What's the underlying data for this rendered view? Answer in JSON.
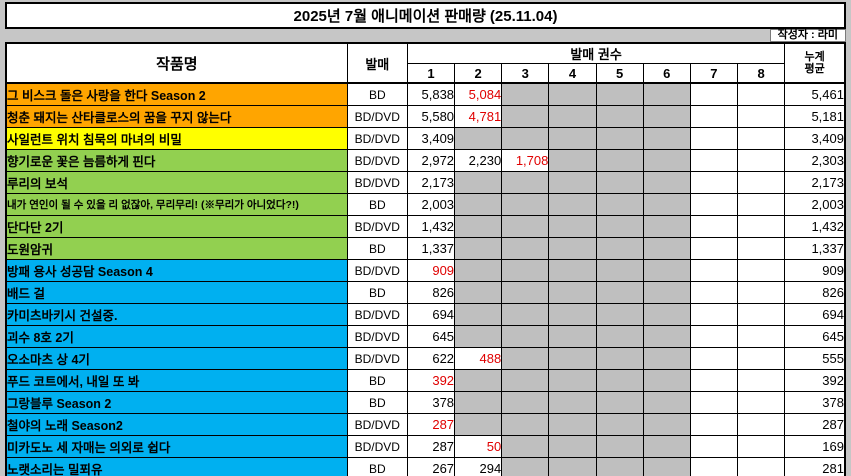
{
  "chart_data": {
    "type": "table",
    "title": "2025년 7월 애니메이션 판매량 (25.11.04)",
    "byline": "작성자 : 라미",
    "headers": {
      "series": "작품명",
      "format": "발매",
      "volume_group": "발매 권수",
      "volume_numbers": [
        "1",
        "2",
        "3",
        "4",
        "5",
        "6",
        "7",
        "8"
      ],
      "cumulative_line1": "누계",
      "cumulative_line2": "평균"
    },
    "colors": {
      "orange": "#FFA500",
      "yellow": "#FFFF00",
      "green": "#92D050",
      "blue": "#00B0F0",
      "no_data_gray": "#BFBFBF",
      "decline_red": "#E00000"
    },
    "rows": [
      {
        "title": "그 비스크 돌은 사랑을 한다 Season 2",
        "color": "orange",
        "format": "BD",
        "values": [
          {
            "v": "5,838"
          },
          {
            "v": "5,084",
            "red": true
          }
        ],
        "gray_to": 6,
        "cum": "5,461"
      },
      {
        "title": "청춘 돼지는 산타클로스의 꿈을 꾸지 않는다",
        "color": "orange",
        "format": "BD/DVD",
        "values": [
          {
            "v": "5,580"
          },
          {
            "v": "4,781",
            "red": true
          }
        ],
        "gray_to": 6,
        "cum": "5,181"
      },
      {
        "title": "사일런트 위치 침묵의 마녀의 비밀",
        "color": "yellow",
        "format": "BD/DVD",
        "values": [
          {
            "v": "3,409"
          }
        ],
        "gray_to": 6,
        "cum": "3,409"
      },
      {
        "title": "향기로운 꽃은 늠름하게 핀다",
        "color": "green",
        "format": "BD/DVD",
        "values": [
          {
            "v": "2,972"
          },
          {
            "v": "2,230"
          },
          {
            "v": "1,708",
            "red": true
          }
        ],
        "gray_to": 6,
        "cum": "2,303"
      },
      {
        "title": "루리의 보석",
        "color": "green",
        "format": "BD/DVD",
        "values": [
          {
            "v": "2,173"
          }
        ],
        "gray_to": 6,
        "cum": "2,173"
      },
      {
        "title": "내가 연인이 될 수 있을 리 없잖아, 무리무리! (※무리가 아니었다?!)",
        "color": "green",
        "format": "BD",
        "values": [
          {
            "v": "2,003"
          }
        ],
        "gray_to": 6,
        "cum": "2,003"
      },
      {
        "title": "단다단 2기",
        "color": "green",
        "format": "BD/DVD",
        "values": [
          {
            "v": "1,432"
          }
        ],
        "gray_to": 6,
        "cum": "1,432"
      },
      {
        "title": "도원암귀",
        "color": "green",
        "format": "BD",
        "values": [
          {
            "v": "1,337"
          }
        ],
        "gray_to": 6,
        "cum": "1,337"
      },
      {
        "title": "방패 용사 성공담 Season 4",
        "color": "blue",
        "format": "BD/DVD",
        "values": [
          {
            "v": "909",
            "red": true
          }
        ],
        "gray_to": 6,
        "cum": "909"
      },
      {
        "title": "배드 걸",
        "color": "blue",
        "format": "BD",
        "values": [
          {
            "v": "826"
          }
        ],
        "gray_to": 6,
        "cum": "826"
      },
      {
        "title": "카미츠바키시 건설중.",
        "color": "blue",
        "format": "BD/DVD",
        "values": [
          {
            "v": "694"
          }
        ],
        "gray_to": 6,
        "cum": "694"
      },
      {
        "title": "괴수 8호 2기",
        "color": "blue",
        "format": "BD/DVD",
        "values": [
          {
            "v": "645"
          }
        ],
        "gray_to": 6,
        "cum": "645"
      },
      {
        "title": "오소마츠 상 4기",
        "color": "blue",
        "format": "BD/DVD",
        "values": [
          {
            "v": "622"
          },
          {
            "v": "488",
            "red": true
          }
        ],
        "gray_to": 6,
        "cum": "555"
      },
      {
        "title": "푸드 코트에서, 내일 또 봐",
        "color": "blue",
        "format": "BD",
        "values": [
          {
            "v": "392",
            "red": true
          }
        ],
        "gray_to": 6,
        "cum": "392"
      },
      {
        "title": "그랑블루 Season 2",
        "color": "blue",
        "format": "BD",
        "values": [
          {
            "v": "378"
          }
        ],
        "gray_to": 6,
        "cum": "378"
      },
      {
        "title": "철야의 노래 Season2",
        "color": "blue",
        "format": "BD/DVD",
        "values": [
          {
            "v": "287",
            "red": true
          }
        ],
        "gray_to": 6,
        "cum": "287"
      },
      {
        "title": "미카도노 세 자매는 의외로 쉽다",
        "color": "blue",
        "format": "BD/DVD",
        "values": [
          {
            "v": "287"
          },
          {
            "v": "50",
            "red": true
          }
        ],
        "gray_to": 6,
        "cum": "169"
      },
      {
        "title": "노랫소리는 밀푀유",
        "color": "blue",
        "format": "BD",
        "values": [
          {
            "v": "267"
          },
          {
            "v": "294"
          }
        ],
        "gray_to": 6,
        "cum": "281"
      }
    ]
  }
}
